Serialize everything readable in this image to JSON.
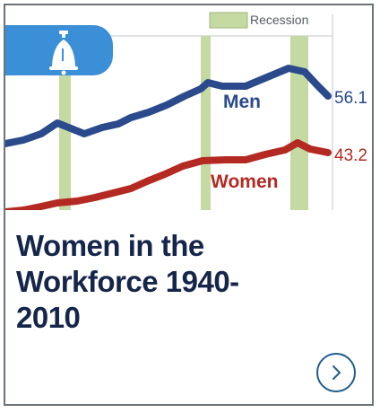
{
  "card": {
    "title": "Women in the Workforce 1940-2010",
    "title_lines": [
      "Women in the",
      "Workforce 1940-",
      "2010"
    ],
    "link_icon": "chevron-right-icon"
  },
  "chart_data": {
    "type": "line",
    "legend": {
      "label": "Recession",
      "color": "#c5d9a3"
    },
    "series": [
      {
        "name": "Men",
        "end_value_label": "56.1",
        "color": "#2a4a8c"
      },
      {
        "name": "Women",
        "end_value_label": "43.2",
        "color": "#b42a23"
      }
    ],
    "badge_icon": "liberty-bell-icon",
    "colors": {
      "badge": "#3a8fd6",
      "grid": "#d0d4d8",
      "recession": "#c5d9a3"
    }
  }
}
